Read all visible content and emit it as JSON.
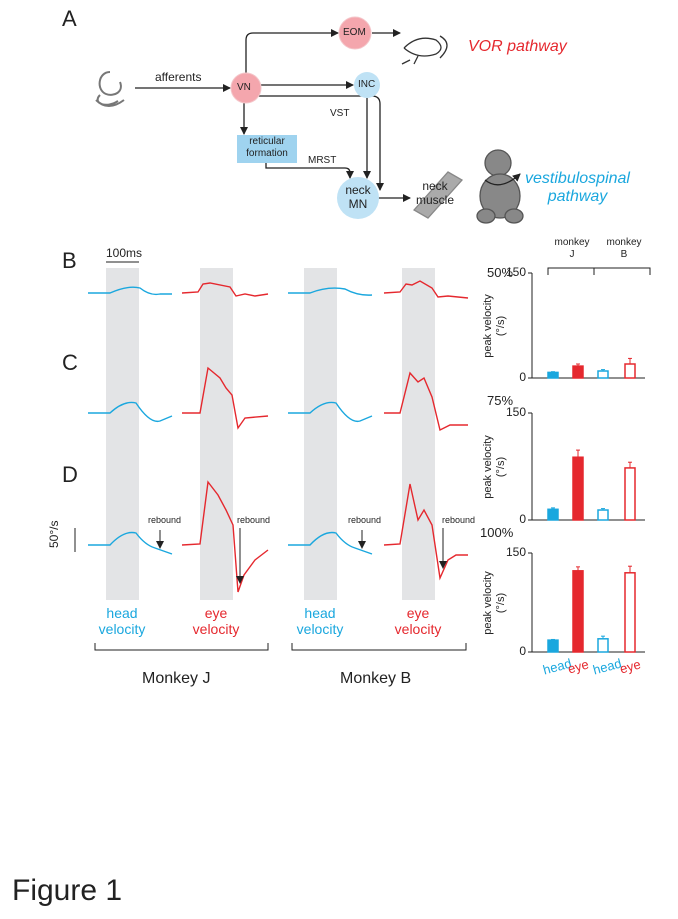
{
  "panels": {
    "a": "A",
    "b": "B",
    "c": "C",
    "d": "D"
  },
  "diagram": {
    "afferents": "afferents",
    "vn": "VN",
    "eom": "EOM",
    "inc": "INC",
    "vst": "VST",
    "reticular": "reticular formation",
    "mrst": "MRST",
    "neck_mn": "neck MN",
    "neck_muscle": "neck muscle",
    "vor": "VOR pathway",
    "vestibulospinal": "vestibulospinal pathway"
  },
  "traces": {
    "time_scale": "100ms",
    "velocity_scale": "50°/s",
    "intensities": [
      "50%",
      "75%",
      "100%"
    ],
    "rebound": "rebound",
    "labels": [
      "head velocity",
      "eye velocity",
      "head velocity",
      "eye velocity"
    ],
    "monkeys": [
      "Monkey J",
      "Monkey B"
    ]
  },
  "bar_charts": {
    "groups": [
      "monkey J",
      "monkey B"
    ],
    "y_label": "peak velocity (°/s)",
    "categories": [
      "head",
      "eye",
      "head",
      "eye"
    ],
    "ylim": [
      0,
      150
    ],
    "yticks": [
      0,
      150
    ],
    "charts": [
      {
        "values": [
          8,
          17,
          10,
          20
        ],
        "errors": [
          1,
          3,
          2,
          8
        ]
      },
      {
        "values": [
          15,
          88,
          14,
          73
        ],
        "errors": [
          2,
          10,
          2,
          8
        ]
      },
      {
        "values": [
          18,
          123,
          20,
          120
        ],
        "errors": [
          1,
          6,
          4,
          10
        ]
      }
    ]
  },
  "figure_label": "Figure 1"
}
